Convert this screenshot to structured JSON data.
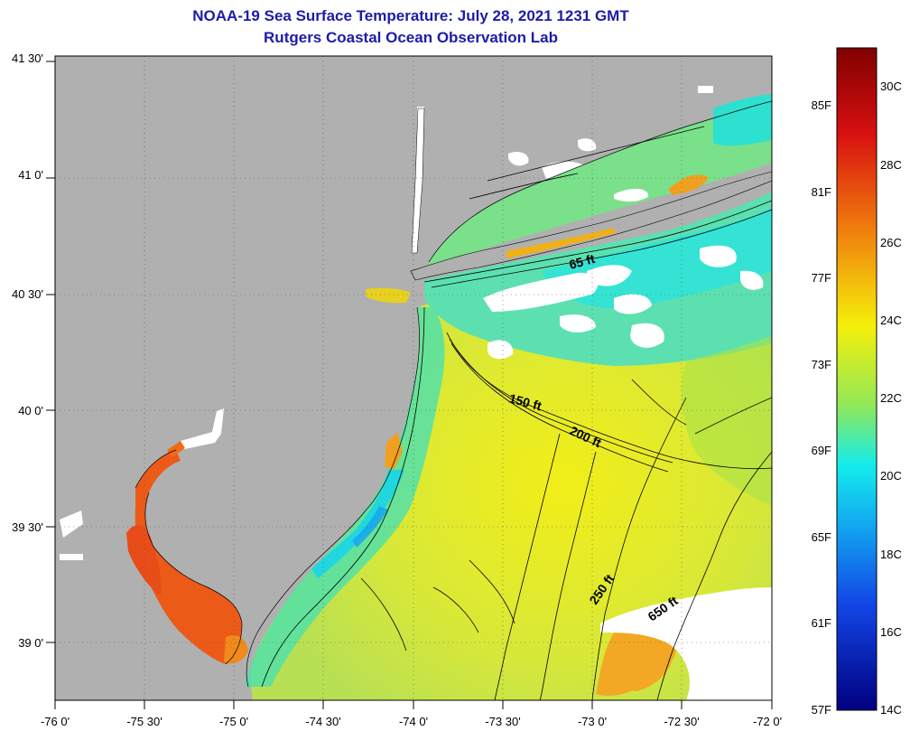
{
  "title_line1": "NOAA-19 Sea Surface Temperature:  July 28, 2021 1231 GMT",
  "title_line2": "Rutgers Coastal Ocean Observation Lab",
  "lat_labels": [
    "41 30'",
    "41 0'",
    "40 30'",
    "40 0'",
    "39 30'",
    "39 0'"
  ],
  "lon_labels": [
    "-76 0'",
    "-75 30'",
    "-75 0'",
    "-74 30'",
    "-74 0'",
    "-73 30'",
    "-73 0'",
    "-72 30'",
    "-72 0'"
  ],
  "contour_labels": [
    "65 ft",
    "150 ft",
    "200 ft",
    "250 ft",
    "650 ft"
  ],
  "colorbar": {
    "f_labels": [
      "85F",
      "81F",
      "77F",
      "73F",
      "69F",
      "65F",
      "61F",
      "57F"
    ],
    "c_labels": [
      "30C",
      "28C",
      "26C",
      "24C",
      "22C",
      "20C",
      "18C",
      "16C",
      "14C"
    ]
  },
  "colors": {
    "land": "#b0b0b0",
    "title": "#1c1ca8",
    "scale_top": "#800000",
    "scale_bottom": "#000080"
  }
}
